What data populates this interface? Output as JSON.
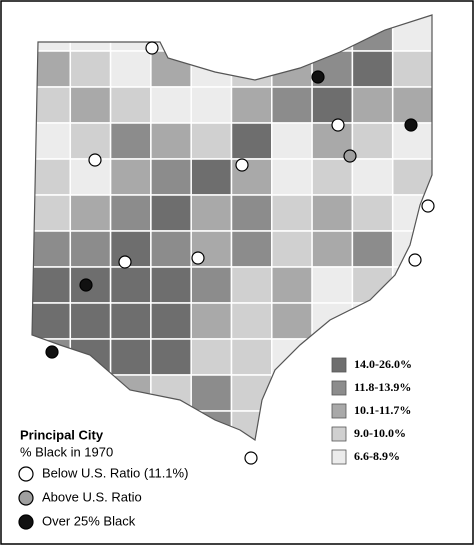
{
  "legend": {
    "items": [
      {
        "label": "14.0-26.0%",
        "color": "#6e6e6e"
      },
      {
        "label": "11.8-13.9%",
        "color": "#8c8c8c"
      },
      {
        "label": "10.1-11.7%",
        "color": "#a9a9a9"
      },
      {
        "label": "9.0-10.0%",
        "color": "#d0d0d0"
      },
      {
        "label": "6.6-8.9%",
        "color": "#ececec"
      }
    ]
  },
  "city_legend": {
    "title": "Principal City",
    "subtitle": "% Black in 1970",
    "items": [
      {
        "label": "Below U.S. Ratio (11.1%)",
        "fill": "#ffffff"
      },
      {
        "label": "Above U.S. Ratio",
        "fill": "#a0a0a0"
      },
      {
        "label": "Over 25% Black",
        "fill": "#111111"
      }
    ]
  }
}
